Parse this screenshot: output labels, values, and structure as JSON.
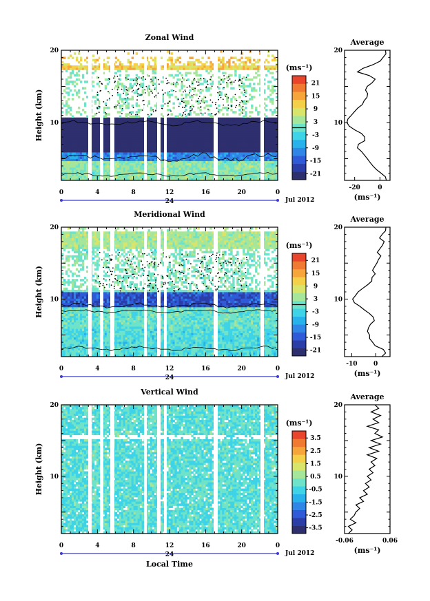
{
  "chart_data": [
    {
      "type": "heatmap",
      "title": "Zonal Wind",
      "ylabel": "Height (km)",
      "xlabel": "",
      "ylim": [
        2,
        20
      ],
      "y_ticks": [
        "20",
        "10"
      ],
      "x_ticks": [
        "0",
        "4",
        "8",
        "12",
        "16",
        "20",
        "0"
      ],
      "date_row": {
        "day": "24",
        "month": "Jul 2012"
      },
      "colorbar": {
        "unit": "(ms⁻¹)",
        "ticks": [
          "21",
          "15",
          "9",
          "3",
          "-3",
          "-9",
          "-15",
          "-21"
        ],
        "range": [
          -24,
          24
        ]
      },
      "average": {
        "title": "Average",
        "xlabel": "(ms⁻¹)",
        "x_ticks": [
          "-20",
          "0"
        ],
        "y_ticks": [
          "20",
          "10"
        ],
        "xlim": [
          -28,
          8
        ],
        "profile": [
          [
            2,
            5
          ],
          [
            2.5,
            4
          ],
          [
            3,
            1
          ],
          [
            3.5,
            -3
          ],
          [
            4,
            -6
          ],
          [
            4.5,
            -8
          ],
          [
            5,
            -10
          ],
          [
            5.5,
            -12
          ],
          [
            6,
            -15
          ],
          [
            6.5,
            -18
          ],
          [
            7,
            -17
          ],
          [
            7.5,
            -12
          ],
          [
            8,
            -12
          ],
          [
            8.5,
            -15
          ],
          [
            9,
            -20
          ],
          [
            9.5,
            -24
          ],
          [
            10,
            -26
          ],
          [
            10.5,
            -25
          ],
          [
            11,
            -23
          ],
          [
            11.5,
            -20
          ],
          [
            12,
            -17
          ],
          [
            12.5,
            -14
          ],
          [
            13,
            -12
          ],
          [
            13.5,
            -10
          ],
          [
            14,
            -10
          ],
          [
            14.5,
            -12
          ],
          [
            15,
            -10
          ],
          [
            15.5,
            -6
          ],
          [
            16,
            -4
          ],
          [
            16.5,
            -8
          ],
          [
            17,
            -18
          ],
          [
            17.5,
            -13
          ],
          [
            18,
            -6
          ],
          [
            18.5,
            0
          ],
          [
            19,
            3
          ],
          [
            19.5,
            5
          ],
          [
            20,
            5
          ]
        ]
      }
    },
    {
      "type": "heatmap",
      "title": "Meridional Wind",
      "ylabel": "Height (km)",
      "xlabel": "",
      "ylim": [
        2,
        20
      ],
      "y_ticks": [
        "20",
        "10"
      ],
      "x_ticks": [
        "0",
        "4",
        "8",
        "12",
        "16",
        "20",
        "0"
      ],
      "date_row": {
        "day": "24",
        "month": "Jul 2012"
      },
      "colorbar": {
        "unit": "(ms⁻¹)",
        "ticks": [
          "21",
          "15",
          "9",
          "3",
          "-3",
          "-9",
          "-15",
          "-21"
        ],
        "range": [
          -24,
          24
        ]
      },
      "average": {
        "title": "Average",
        "xlabel": "(ms⁻¹)",
        "x_ticks": [
          "-10",
          "0"
        ],
        "y_ticks": [
          "20",
          "10"
        ],
        "xlim": [
          -13,
          6
        ],
        "profile": [
          [
            2,
            2
          ],
          [
            2.5,
            4
          ],
          [
            3,
            3
          ],
          [
            3.5,
            0
          ],
          [
            4,
            -1
          ],
          [
            4.5,
            -2
          ],
          [
            5,
            -3
          ],
          [
            5.5,
            -3
          ],
          [
            6,
            -3
          ],
          [
            6.5,
            -2
          ],
          [
            7,
            -1
          ],
          [
            7.5,
            -1
          ],
          [
            8,
            -3
          ],
          [
            8.5,
            -5
          ],
          [
            9,
            -7
          ],
          [
            9.5,
            -9
          ],
          [
            10,
            -10
          ],
          [
            10.5,
            -9
          ],
          [
            11,
            -7
          ],
          [
            11.5,
            -5
          ],
          [
            12,
            -3
          ],
          [
            12.5,
            -2
          ],
          [
            13,
            -1
          ],
          [
            13.5,
            0
          ],
          [
            14,
            -1
          ],
          [
            14.5,
            0
          ],
          [
            15,
            0
          ],
          [
            15.5,
            1
          ],
          [
            16,
            2
          ],
          [
            16.5,
            1
          ],
          [
            17,
            2
          ],
          [
            17.5,
            3
          ],
          [
            18,
            3
          ],
          [
            18.5,
            2
          ],
          [
            19,
            3
          ],
          [
            19.5,
            4
          ],
          [
            20,
            4
          ]
        ]
      }
    },
    {
      "type": "heatmap",
      "title": "Vertical Wind",
      "ylabel": "Height (km)",
      "xlabel": "Local Time",
      "ylim": [
        2,
        20
      ],
      "y_ticks": [
        "20",
        "10"
      ],
      "x_ticks": [
        "0",
        "4",
        "8",
        "12",
        "16",
        "20",
        "0"
      ],
      "date_row": {
        "day": "24",
        "month": "Jul 2012"
      },
      "colorbar": {
        "unit": "(ms⁻¹)",
        "ticks": [
          "3.5",
          "2.5",
          "1.5",
          "0.5",
          "-0.5",
          "-1.5",
          "-2.5",
          "-3.5"
        ],
        "range": [
          -4,
          4
        ]
      },
      "average": {
        "title": "Average",
        "xlabel": "(ms⁻¹)",
        "x_ticks": [
          "-0.06",
          "0.06"
        ],
        "y_ticks": [
          "20",
          "10"
        ],
        "xlim": [
          -0.06,
          0.06
        ],
        "profile": [
          [
            2,
            -0.05
          ],
          [
            2.5,
            -0.04
          ],
          [
            3,
            -0.05
          ],
          [
            3.5,
            -0.03
          ],
          [
            4,
            -0.045
          ],
          [
            4.5,
            -0.035
          ],
          [
            5,
            -0.03
          ],
          [
            5.5,
            -0.02
          ],
          [
            6,
            -0.03
          ],
          [
            6.5,
            -0.01
          ],
          [
            7,
            -0.02
          ],
          [
            7.5,
            0.0
          ],
          [
            8,
            -0.01
          ],
          [
            8.5,
            0.005
          ],
          [
            9,
            -0.005
          ],
          [
            9.5,
            0.01
          ],
          [
            10,
            0.0
          ],
          [
            10.5,
            0.015
          ],
          [
            11,
            0.005
          ],
          [
            11.5,
            0.02
          ],
          [
            12,
            0.01
          ],
          [
            12.5,
            0.025
          ],
          [
            13,
            0.0
          ],
          [
            13.5,
            0.03
          ],
          [
            14,
            0.005
          ],
          [
            14.5,
            0.035
          ],
          [
            15,
            0.01
          ],
          [
            15.5,
            0.04
          ],
          [
            16,
            0.02
          ],
          [
            16.5,
            0.03
          ],
          [
            17,
            0.0
          ],
          [
            17.5,
            0.03
          ],
          [
            18,
            0.015
          ],
          [
            18.5,
            0.035
          ],
          [
            19,
            0.01
          ],
          [
            19.5,
            0.03
          ],
          [
            20,
            0.02
          ]
        ]
      }
    }
  ]
}
